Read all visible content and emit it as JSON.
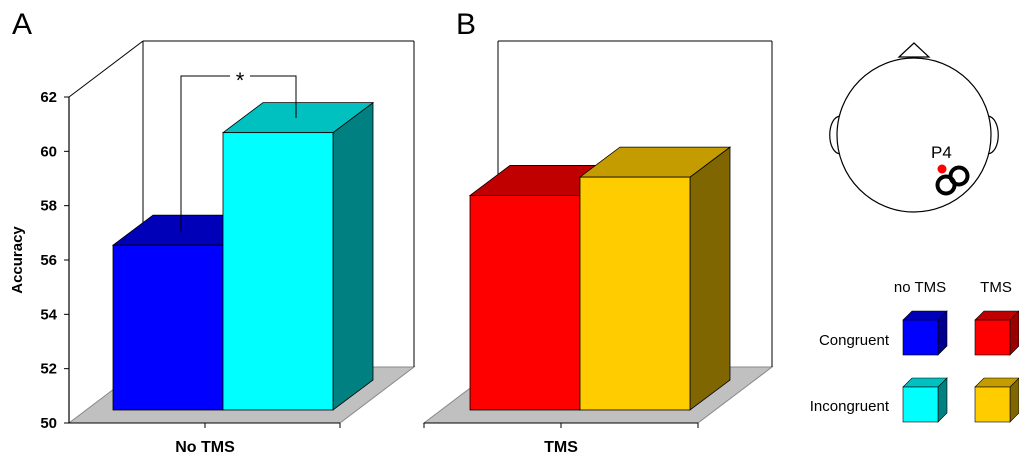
{
  "chart_data": {
    "type": "bar",
    "ylabel": "Accuracy",
    "ylim": [
      50,
      62
    ],
    "yticks": [
      50,
      52,
      54,
      56,
      58,
      60,
      62
    ],
    "panels": [
      {
        "panel_label": "A",
        "xlabel": "No TMS",
        "bars": [
          {
            "condition": "Congruent",
            "value": 56.3,
            "front": "#0000ff",
            "top": "#0000b8",
            "side": "#00008c"
          },
          {
            "condition": "Incongruent",
            "value": 60.6,
            "front": "#00ffff",
            "top": "#00c0c0",
            "side": "#008080"
          }
        ],
        "significance": "*"
      },
      {
        "panel_label": "B",
        "xlabel": "TMS",
        "bars": [
          {
            "condition": "Congruent",
            "value": 58.2,
            "front": "#ff0000",
            "top": "#c00000",
            "side": "#990000"
          },
          {
            "condition": "Incongruent",
            "value": 58.9,
            "front": "#ffcc00",
            "top": "#c49c00",
            "side": "#806600"
          }
        ],
        "significance": ""
      }
    ],
    "grid": false,
    "legend_position": "bottom-right"
  },
  "legend": {
    "col_headers": [
      "no TMS",
      "TMS"
    ],
    "row_labels": [
      "Congruent",
      "Incongruent"
    ]
  },
  "head_diagram": {
    "electrode_label": "P4",
    "electrode_color": "#ff0000"
  },
  "colors": {
    "floor": "#c0c0c0",
    "frame": "#000000"
  }
}
